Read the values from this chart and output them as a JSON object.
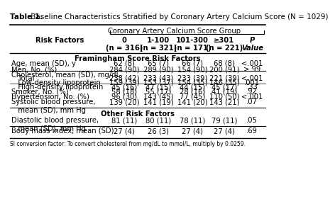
{
  "title_bold": "Table 1.",
  "title_rest": " Baseline Characteristics Stratified by Coronary Artery Calcium Score (N = 1029)",
  "group_header": "Coronary Artery Calcium Score Group",
  "col_headers": [
    "Risk Factors",
    "0\n(n = 316)",
    "1-100\n(n = 321)",
    "101-300\n(n = 171)",
    "≥301\n(n = 221)",
    "P\nValue"
  ],
  "section1_header": "Framingham Score Risk Factors",
  "section2_header": "Other Risk Factors",
  "footnote": "SI conversion factor: To convert cholesterol from mg/dL to mmol/L, multiply by 0.0259.",
  "rows": [
    {
      "label": "Age, mean (SD), y",
      "vals": [
        "62 (8)",
        "65 (7)",
        "66 (7)",
        "68 (8)",
        "<.001"
      ],
      "indent": 0,
      "border_bottom": false,
      "border_top": false
    },
    {
      "label": "Men, No. (%)",
      "vals": [
        "284 (90)",
        "289 (90)",
        "154 (90)",
        "200 (91)",
        ">.99"
      ],
      "indent": 0,
      "border_bottom": true,
      "border_top": false
    },
    {
      "label": "Cholesterol, mean (SD), mg/dL",
      "vals": [
        "",
        "",
        "",
        "",
        ""
      ],
      "indent": 0,
      "border_bottom": false,
      "border_top": false
    },
    {
      "label": "   Total",
      "vals": [
        "238 (42)",
        "233 (43)",
        "233 (39)",
        "221 (39)",
        "<.001"
      ],
      "indent": 1,
      "border_bottom": false,
      "border_top": false
    },
    {
      "label": "   Low-density lipoprotein",
      "vals": [
        "159 (39)",
        "153 (37)",
        "154 (35)",
        "146 (35)",
        ".001"
      ],
      "indent": 1,
      "border_bottom": false,
      "border_top": false
    },
    {
      "label": "   High-density lipoprotein",
      "vals": [
        "45 (16)",
        "47 (15)",
        "44 (15)",
        "45 (17)",
        ".33"
      ],
      "indent": 1,
      "border_bottom": false,
      "border_top": false
    },
    {
      "label": "Smoker, No. (%)",
      "vals": [
        "58 (18)",
        "55 (17)",
        "28 (16)",
        "41 (19)",
        ".92"
      ],
      "indent": 0,
      "border_bottom": false,
      "border_top": true
    },
    {
      "label": "Hypertension, No. (%)",
      "vals": [
        "96 (30)",
        "143 (45)",
        "77 (45)",
        "110 (50)",
        "<.001"
      ],
      "indent": 0,
      "border_bottom": false,
      "border_top": false
    },
    {
      "label": "Systolic blood pressure,\n   mean (SD), mm Hg",
      "vals": [
        "139 (20)",
        "141 (19)",
        "141 (20)",
        "143 (21)",
        ".07"
      ],
      "indent": 0,
      "border_bottom": true,
      "border_top": false
    },
    {
      "label": "Diastolic blood pressure,\n   mean (SD), mm Hg",
      "vals": [
        "81 (11)",
        "80 (11)",
        "78 (11)",
        "79 (11)",
        ".05"
      ],
      "indent": 0,
      "border_bottom": true,
      "border_top": false
    },
    {
      "label": "Body mass index, mean (SD)",
      "vals": [
        "27 (4)",
        "26 (3)",
        "27 (4)",
        "27 (4)",
        ".69"
      ],
      "indent": 0,
      "border_bottom": false,
      "border_top": false
    }
  ],
  "bg_color": "#ffffff",
  "font_size": 7.2,
  "title_font_size": 7.5
}
